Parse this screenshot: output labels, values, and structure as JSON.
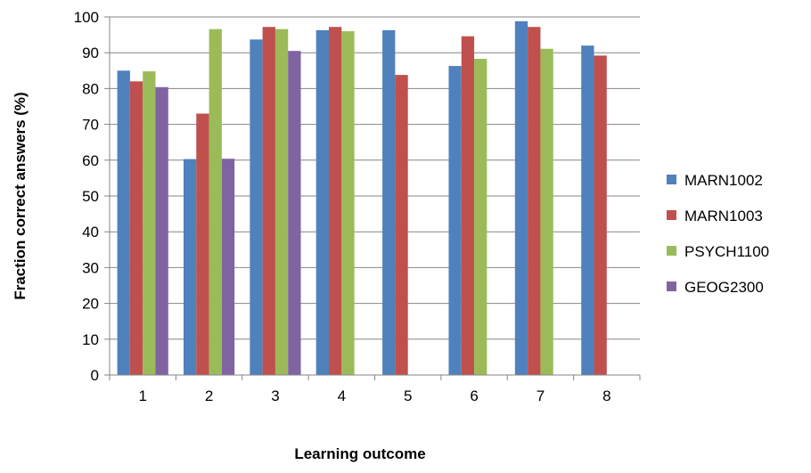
{
  "chart_data": {
    "type": "bar",
    "title": "",
    "xlabel": "Learning outcome",
    "ylabel": "Fraction correct answers (%)",
    "ylim": [
      0,
      100
    ],
    "yticks": [
      0,
      10,
      20,
      30,
      40,
      50,
      60,
      70,
      80,
      90,
      100
    ],
    "grid": true,
    "legend_position": "right",
    "categories": [
      "1",
      "2",
      "3",
      "4",
      "5",
      "6",
      "7",
      "8"
    ],
    "series": [
      {
        "name": "MARN1002",
        "color": "#4F81BD",
        "values": [
          85,
          60.3,
          93.7,
          96.3,
          96.3,
          86.3,
          98.8,
          92
        ]
      },
      {
        "name": "MARN1003",
        "color": "#C0504D",
        "values": [
          82,
          73,
          97.2,
          97.2,
          83.8,
          94.6,
          97.2,
          89.2
        ]
      },
      {
        "name": "PSYCH1100",
        "color": "#9BBB59",
        "values": [
          84.8,
          96.6,
          96.6,
          96,
          null,
          88.3,
          91.1,
          null
        ]
      },
      {
        "name": "GEOG2300",
        "color": "#8064A2",
        "values": [
          80.4,
          60.4,
          90.5,
          null,
          null,
          null,
          null,
          null
        ]
      }
    ]
  }
}
